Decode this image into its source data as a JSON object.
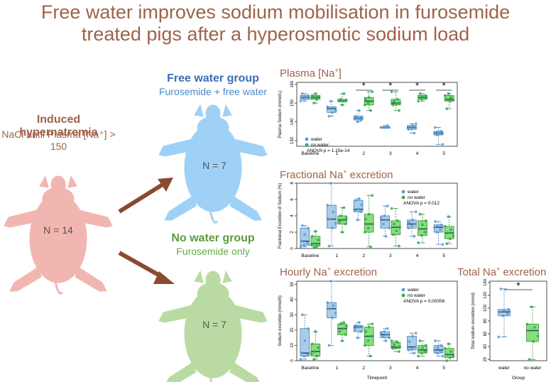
{
  "figure_title_line1": "Free water improves sodium mobilisation in furosemide",
  "figure_title_line2": "treated pigs after a hyperosmotic sodium load",
  "colors": {
    "title": "#a0624a",
    "water": "#6a9fd4",
    "no_water": "#43a047",
    "pig_red": "#f2b6b0",
    "pig_blue": "#9fd1f7",
    "pig_green": "#b9dba3",
    "arrow": "#8a4a32"
  },
  "groups": {
    "induced": {
      "title": "Induced hypernatremia",
      "subtitle": "NaCl until Plasma [Na⁺] > 150",
      "n_label": "N = 14"
    },
    "free_water": {
      "title": "Free water group",
      "subtitle": "Furosemide + free water",
      "n_label": "N = 7"
    },
    "no_water": {
      "title": "No water group",
      "subtitle": "Furosemide only",
      "n_label": "N = 7"
    }
  },
  "panels": {
    "plasma": {
      "title_main": "Plasma [Na",
      "title_sup": "+",
      "title_end": "]"
    },
    "fractional": {
      "title_main": "Fractional Na",
      "title_sup": "+",
      "title_end": " excretion"
    },
    "hourly": {
      "title_main": "Hourly Na",
      "title_sup": "+",
      "title_end": " excretion"
    },
    "total": {
      "title_main": "Total Na",
      "title_sup": "+",
      "title_end": " excretion"
    }
  },
  "chart_data": [
    {
      "type": "box",
      "ylabel": "Plasma Sodium (mmol/L)",
      "categories": [
        "Baseline",
        "1",
        "2",
        "3",
        "4",
        "5"
      ],
      "ylim": [
        127,
        161
      ],
      "yticks": [
        130,
        140,
        150,
        160
      ],
      "legend": [
        "water",
        "no water"
      ],
      "annotation": "ANOVA p = 1.15e-14",
      "significant": [
        "2",
        "3",
        "4",
        "5"
      ],
      "series": [
        {
          "name": "water",
          "boxes": [
            [
              151,
              152,
              153,
              154,
              155
            ],
            [
              143,
              145,
              147,
              148,
              151
            ],
            [
              140,
              141,
              142,
              143,
              146
            ],
            [
              137,
              137,
              137,
              137,
              138
            ],
            [
              134,
              136,
              137,
              138,
              139
            ],
            [
              128,
              133,
              134,
              135,
              137
            ]
          ]
        },
        {
          "name": "no water",
          "boxes": [
            [
              150,
              152,
              153,
              154,
              155
            ],
            [
              149,
              151,
              151,
              152,
              155
            ],
            [
              146,
              149,
              151,
              153,
              156
            ],
            [
              146,
              149,
              150,
              152,
              156
            ],
            [
              151,
              152,
              153,
              154,
              155
            ],
            [
              147,
              151,
              152,
              154,
              155
            ]
          ]
        }
      ]
    },
    {
      "type": "box",
      "ylabel": "Fractional Excretion of Sodium (%)",
      "categories": [
        "Baseline",
        "1",
        "2",
        "3",
        "4",
        "5"
      ],
      "ylim": [
        0,
        8
      ],
      "yticks": [
        0,
        2,
        4,
        6,
        8
      ],
      "legend": [
        "water",
        "no water"
      ],
      "annotation": "ANOVA p = 0.012",
      "series": [
        {
          "name": "water",
          "boxes": [
            [
              0.2,
              0.4,
              0.9,
              2.5,
              2.8
            ],
            [
              0.3,
              2.5,
              3.6,
              5.3,
              8.0
            ],
            [
              3.5,
              4.5,
              4.8,
              5.9,
              6.1
            ],
            [
              1.5,
              2.5,
              3.5,
              4.0,
              5.2
            ],
            [
              1.5,
              2.5,
              3.0,
              3.5,
              4.5
            ],
            [
              0.5,
              2.0,
              2.6,
              2.9,
              3.3
            ]
          ]
        },
        {
          "name": "no water",
          "boxes": [
            [
              0.1,
              0.3,
              0.6,
              1.5,
              2.1
            ],
            [
              2.0,
              3.0,
              3.5,
              4.0,
              5.0
            ],
            [
              0.2,
              2.0,
              3.0,
              4.2,
              6.5
            ],
            [
              0.3,
              1.7,
              2.6,
              3.4,
              4.9
            ],
            [
              0.7,
              1.6,
              2.4,
              3.4,
              4.2
            ],
            [
              0.6,
              1.2,
              1.9,
              2.7,
              3.9
            ]
          ]
        }
      ]
    },
    {
      "type": "box",
      "ylabel": "Sodium excretion (mmol/h)",
      "xlabel": "Timepoint",
      "categories": [
        "Baseline",
        "1",
        "2",
        "3",
        "4",
        "5"
      ],
      "ylim": [
        0,
        52
      ],
      "yticks": [
        0,
        10,
        20,
        30,
        40,
        50
      ],
      "legend": [
        "water",
        "no water"
      ],
      "annotation": "ANOVA p = 0.00056",
      "series": [
        {
          "name": "water",
          "boxes": [
            [
              1,
              3,
              5,
              21,
              30
            ],
            [
              10,
              28,
              34,
              38,
              52
            ],
            [
              15,
              19,
              22,
              23,
              25
            ],
            [
              13,
              15,
              17,
              19,
              21
            ],
            [
              5,
              7,
              9,
              16,
              18
            ],
            [
              3,
              5,
              7,
              10,
              13
            ]
          ]
        },
        {
          "name": "no water",
          "boxes": [
            [
              1,
              3,
              6,
              11,
              19
            ],
            [
              13,
              17,
              21,
              24,
              25
            ],
            [
              3,
              10,
              16,
              22,
              24
            ],
            [
              6,
              8,
              9,
              12,
              13
            ],
            [
              3,
              5,
              7,
              10,
              13
            ],
            [
              0,
              2,
              4,
              8,
              11
            ]
          ]
        }
      ]
    },
    {
      "type": "box",
      "ylabel": "Total sodium excretion (mmol)",
      "xlabel": "Group",
      "categories": [
        "water",
        "no water"
      ],
      "ylim": [
        18,
        142
      ],
      "yticks": [
        20,
        40,
        60,
        80,
        100,
        120,
        140
      ],
      "significant": true,
      "boxes": [
        [
          55,
          88,
          94,
          98,
          130
        ],
        [
          20,
          48,
          65,
          75,
          102
        ]
      ]
    }
  ]
}
